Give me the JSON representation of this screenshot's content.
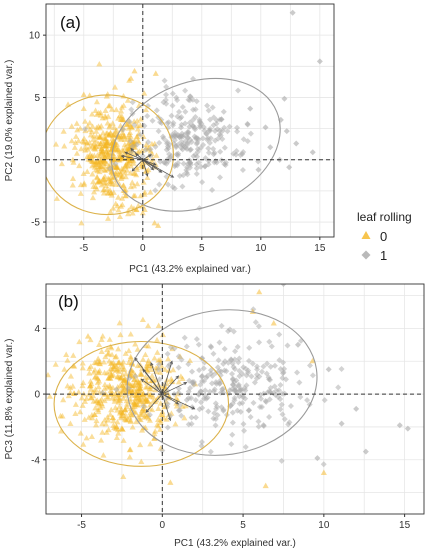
{
  "colors": {
    "group0": "#f5b521",
    "group0_ellipse": "#dcb24a",
    "group1": "#a8a8a8",
    "group1_ellipse": "#9a9a9a",
    "arrow": "#555555",
    "grid": "#e6e6e6",
    "axis_line": "#333333"
  },
  "legend": {
    "title": "leaf rolling",
    "items": [
      {
        "label": "0",
        "shape": "triangle",
        "color": "#f5b521"
      },
      {
        "label": "1",
        "shape": "diamond",
        "color": "#a8a8a8"
      }
    ]
  },
  "chart_data": [
    {
      "type": "scatter",
      "panel_label": "(a)",
      "xlabel": "PC1 (43.2% explained var.)",
      "ylabel": "PC2 (19.0% explained var.)",
      "xlim": [
        -8.2,
        16.2
      ],
      "ylim": [
        -6.2,
        12.5
      ],
      "xticks": [
        -5,
        0,
        5,
        10,
        15
      ],
      "yticks": [
        -5,
        0,
        5,
        10
      ],
      "grid": true,
      "series": [
        {
          "name": "0",
          "marker": "triangle",
          "center": [
            -2.5,
            0.3
          ],
          "spread": [
            1.6,
            1.9
          ],
          "count": 500
        },
        {
          "name": "1",
          "marker": "diamond",
          "center": [
            3.8,
            1.6
          ],
          "spread": [
            2.2,
            1.8
          ],
          "count": 260
        }
      ],
      "ellipses": [
        {
          "series": "0",
          "cx": -3.0,
          "cy": 0.4,
          "rx": 5.6,
          "ry": 4.8,
          "angle": 0
        },
        {
          "series": "1",
          "cx": 4.5,
          "cy": 1.2,
          "rx": 7.4,
          "ry": 5.0,
          "angle": 22
        }
      ],
      "loadings": [
        [
          -1.5,
          0.6
        ],
        [
          -1.0,
          0.9
        ],
        [
          -1.8,
          0.3
        ],
        [
          -0.6,
          0.5
        ],
        [
          0.7,
          0.4
        ],
        [
          1.1,
          -0.4
        ],
        [
          0.9,
          -0.8
        ],
        [
          1.6,
          -1.0
        ],
        [
          2.6,
          -1.4
        ],
        [
          -0.9,
          -0.9
        ],
        [
          0.4,
          -1.3
        ]
      ],
      "sparse_points": [
        {
          "series": "1",
          "x": 12.7,
          "y": 11.8
        },
        {
          "series": "1",
          "x": 15.0,
          "y": 7.9
        },
        {
          "series": "1",
          "x": 12.0,
          "y": 4.9
        },
        {
          "series": "1",
          "x": 11.7,
          "y": 3.2
        },
        {
          "series": "1",
          "x": 12.2,
          "y": 2.3
        },
        {
          "series": "1",
          "x": 10.4,
          "y": 2.6
        },
        {
          "series": "1",
          "x": 10.8,
          "y": 1.0
        },
        {
          "series": "1",
          "x": 13.0,
          "y": 1.3
        },
        {
          "series": "1",
          "x": 14.4,
          "y": 0.6
        },
        {
          "series": "1",
          "x": 11.6,
          "y": 0.0
        },
        {
          "series": "1",
          "x": 12.4,
          "y": -0.6
        },
        {
          "series": "1",
          "x": 9.8,
          "y": -0.8
        },
        {
          "series": "1",
          "x": 9.1,
          "y": 4.1
        },
        {
          "series": "0",
          "x": -1.0,
          "y": 6.5
        },
        {
          "series": "0",
          "x": -0.7,
          "y": 7.1
        },
        {
          "series": "0",
          "x": 1.1,
          "y": 6.9
        },
        {
          "series": "0",
          "x": -5.0,
          "y": 5.2
        },
        {
          "series": "0",
          "x": 1.0,
          "y": -5.1
        },
        {
          "series": "0",
          "x": 1.3,
          "y": -5.3
        }
      ]
    },
    {
      "type": "scatter",
      "panel_label": "(b)",
      "xlabel": "PC1 (43.2% explained var.)",
      "ylabel": "PC3 (11.8% explained var.)",
      "xlim": [
        -7.2,
        16.2
      ],
      "ylim": [
        -7.3,
        6.7
      ],
      "xticks": [
        -5,
        0,
        5,
        10,
        15
      ],
      "yticks": [
        -4,
        0,
        4
      ],
      "grid": true,
      "series": [
        {
          "name": "0",
          "marker": "triangle",
          "center": [
            -2.2,
            0.2
          ],
          "spread": [
            1.7,
            1.4
          ],
          "count": 520
        },
        {
          "name": "1",
          "marker": "diamond",
          "center": [
            4.0,
            0.3
          ],
          "spread": [
            2.4,
            1.6
          ],
          "count": 280
        }
      ],
      "ellipses": [
        {
          "series": "0",
          "cx": -1.3,
          "cy": -0.6,
          "rx": 5.4,
          "ry": 3.8,
          "angle": 0
        },
        {
          "series": "1",
          "cx": 3.7,
          "cy": 0.7,
          "rx": 5.9,
          "ry": 4.4,
          "angle": 8
        }
      ],
      "loadings": [
        [
          -1.7,
          2.2
        ],
        [
          -1.2,
          1.5
        ],
        [
          -0.7,
          1.9
        ],
        [
          -1.3,
          0.9
        ],
        [
          0.6,
          2.0
        ],
        [
          1.0,
          1.1
        ],
        [
          1.5,
          0.7
        ],
        [
          1.0,
          -0.6
        ],
        [
          2.0,
          -0.9
        ],
        [
          0.5,
          -1.6
        ],
        [
          -1.0,
          -1.1
        ]
      ],
      "sparse_points": [
        {
          "series": "0",
          "x": 6.0,
          "y": 6.2
        },
        {
          "series": "0",
          "x": 5.6,
          "y": 5.0
        },
        {
          "series": "0",
          "x": 6.9,
          "y": 4.3
        },
        {
          "series": "0",
          "x": 9.3,
          "y": 2.0
        },
        {
          "series": "0",
          "x": 10.0,
          "y": -4.8
        },
        {
          "series": "0",
          "x": 0.5,
          "y": -5.4
        },
        {
          "series": "0",
          "x": 6.4,
          "y": -5.6
        },
        {
          "series": "0",
          "x": -4.6,
          "y": 3.5
        },
        {
          "series": "1",
          "x": 7.5,
          "y": 6.7
        },
        {
          "series": "1",
          "x": 8.4,
          "y": 3.0
        },
        {
          "series": "1",
          "x": 10.3,
          "y": 1.5
        },
        {
          "series": "1",
          "x": 12.0,
          "y": -0.9
        },
        {
          "series": "1",
          "x": 14.7,
          "y": -1.9
        },
        {
          "series": "1",
          "x": 15.2,
          "y": -2.1
        },
        {
          "series": "1",
          "x": 12.6,
          "y": -3.5
        },
        {
          "series": "1",
          "x": 11.1,
          "y": -1.8
        },
        {
          "series": "1",
          "x": 9.6,
          "y": -3.9
        }
      ]
    }
  ]
}
